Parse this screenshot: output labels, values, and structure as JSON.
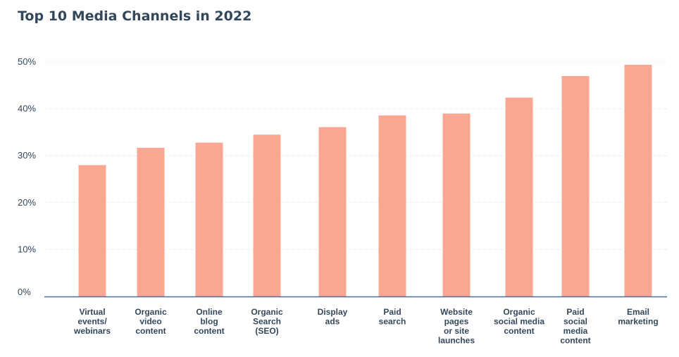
{
  "title": "Top 10 Media Channels in 2022",
  "colors": {
    "bar": "#f7a792",
    "axis": "#516f90",
    "grid": "#e6ebf0",
    "text": "#33475b"
  },
  "chart_data": {
    "type": "bar",
    "title": "Top 10 Media Channels in 2022",
    "xlabel": "",
    "ylabel": "",
    "ylim": [
      0,
      50
    ],
    "yticks": [
      0,
      10,
      20,
      30,
      40,
      50
    ],
    "ytick_labels": [
      "0%",
      "10%",
      "20%",
      "30%",
      "40%",
      "50%"
    ],
    "grid": true,
    "legend": "none",
    "categories": [
      [
        "Virtual",
        "events/",
        "webinars"
      ],
      [
        "Organic",
        "video",
        "content"
      ],
      [
        "Online",
        "blog",
        "content"
      ],
      [
        "Organic",
        "Search",
        "(SEO)"
      ],
      [
        "Display",
        "ads"
      ],
      [
        "Paid",
        "search"
      ],
      [
        "Website",
        "pages",
        "or site",
        "launches"
      ],
      [
        "Organic",
        "social media",
        "content"
      ],
      [
        "Paid",
        "social",
        "media",
        "content"
      ],
      [
        "Email",
        "marketing"
      ]
    ],
    "values": [
      28,
      31.7,
      32.8,
      34.5,
      36.1,
      38.6,
      39,
      42.4,
      47,
      49.4
    ]
  }
}
